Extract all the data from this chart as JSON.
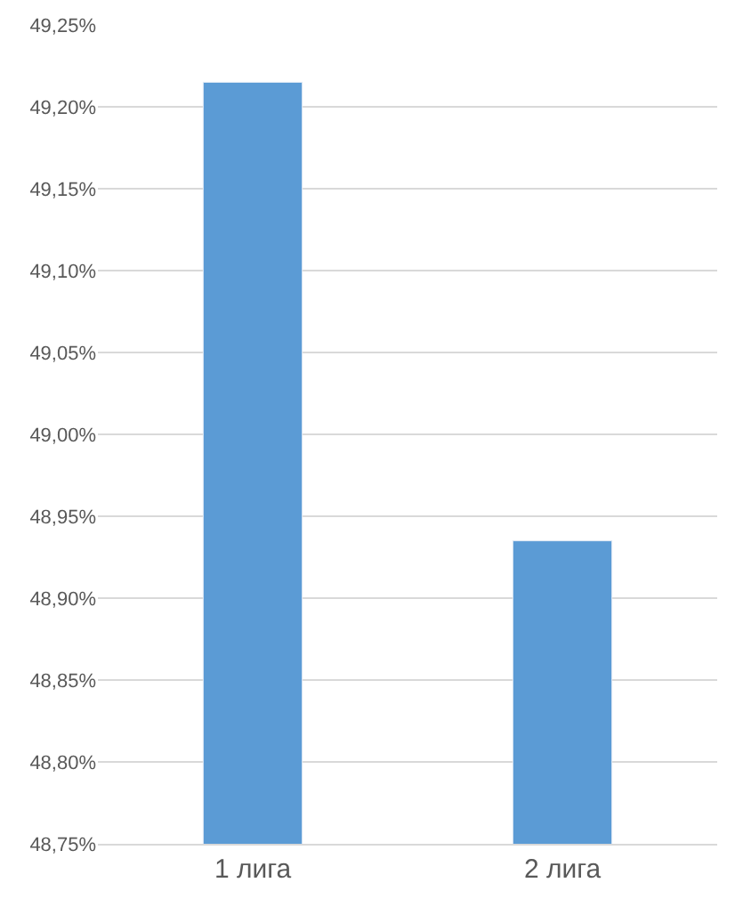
{
  "chart_data": {
    "type": "bar",
    "categories": [
      "1 лига",
      "2 лига"
    ],
    "values": [
      49.215,
      48.935
    ],
    "color": "#5b9bd5",
    "ylim": [
      48.75,
      49.25
    ],
    "yticks": [
      {
        "value": 48.75,
        "label": "48,75%"
      },
      {
        "value": 48.8,
        "label": "48,80%"
      },
      {
        "value": 48.85,
        "label": "48,85%"
      },
      {
        "value": 48.9,
        "label": "48,90%"
      },
      {
        "value": 48.95,
        "label": "48,95%"
      },
      {
        "value": 49.0,
        "label": "49,00%"
      },
      {
        "value": 49.05,
        "label": "49,05%"
      },
      {
        "value": 49.1,
        "label": "49,10%"
      },
      {
        "value": 49.15,
        "label": "49,15%"
      },
      {
        "value": 49.2,
        "label": "49,20%"
      },
      {
        "value": 49.25,
        "label": "49,25%"
      }
    ],
    "grid": "y",
    "legend": false
  }
}
